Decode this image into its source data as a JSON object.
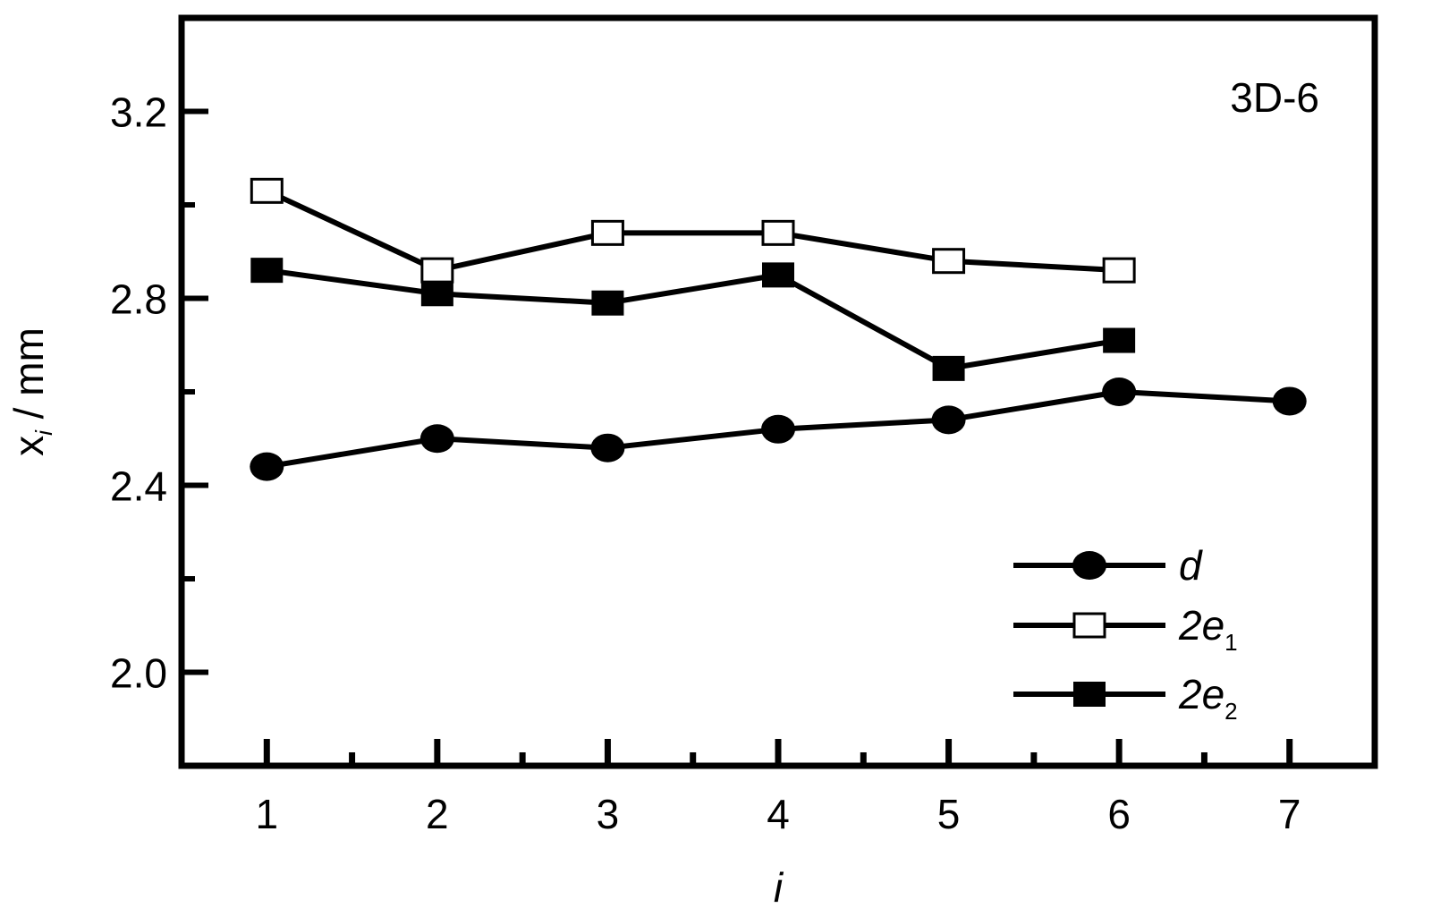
{
  "chart_data": {
    "type": "line",
    "annotation": "3D-6",
    "xlabel": "i",
    "ylabel": "x",
    "ylabel_sub": "i",
    "ylabel_unit": " / mm",
    "xlim": [
      0.5,
      7.5
    ],
    "ylim": [
      1.8,
      3.4
    ],
    "x_ticks": [
      1,
      2,
      3,
      4,
      5,
      6,
      7
    ],
    "x_tick_labels": [
      "1",
      "2",
      "3",
      "4",
      "5",
      "6",
      "7"
    ],
    "y_major_ticks": [
      2.0,
      2.4,
      2.8,
      3.2
    ],
    "y_tick_labels": [
      "2.0",
      "2.4",
      "2.8",
      "3.2"
    ],
    "y_minor_ticks": [
      2.2,
      2.6,
      3.0
    ],
    "grid": false,
    "legend_position": "bottom-right",
    "series": [
      {
        "name": "d",
        "marker": "filled-circle",
        "color": "#000000",
        "x": [
          1,
          2,
          3,
          4,
          5,
          6,
          7
        ],
        "y": [
          2.44,
          2.5,
          2.48,
          2.52,
          2.54,
          2.6,
          2.58
        ]
      },
      {
        "name": "2e",
        "name_sub": "1",
        "marker": "open-square",
        "color": "#000000",
        "x": [
          1,
          2,
          3,
          4,
          5,
          6
        ],
        "y": [
          3.03,
          2.86,
          2.94,
          2.94,
          2.88,
          2.86
        ]
      },
      {
        "name": "2e",
        "name_sub": "2",
        "marker": "filled-square",
        "color": "#000000",
        "x": [
          1,
          2,
          3,
          4,
          5,
          6
        ],
        "y": [
          2.86,
          2.81,
          2.79,
          2.85,
          2.65,
          2.71
        ]
      }
    ]
  }
}
